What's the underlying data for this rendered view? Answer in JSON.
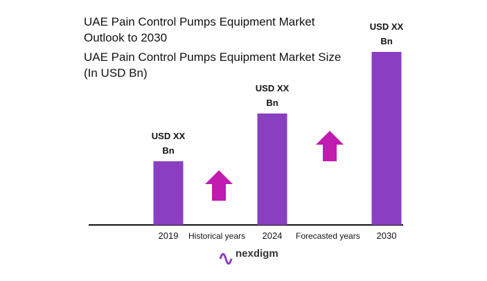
{
  "chart_data": {
    "type": "bar",
    "title": "UAE Pain Control Pumps Equipment Market Outlook to 2030",
    "subtitle": "UAE Pain Control Pumps Equipment Market Size (In USD Bn)",
    "categories": [
      "2019",
      "2024",
      "2030"
    ],
    "values": [
      92,
      161,
      250
    ],
    "value_labels": [
      "USD XX Bn",
      "USD XX Bn",
      "USD XX Bn"
    ],
    "color": "#8a3fc0",
    "annotations": [
      "Historical years",
      "Forecasted years"
    ],
    "brand": "nexdigm"
  }
}
